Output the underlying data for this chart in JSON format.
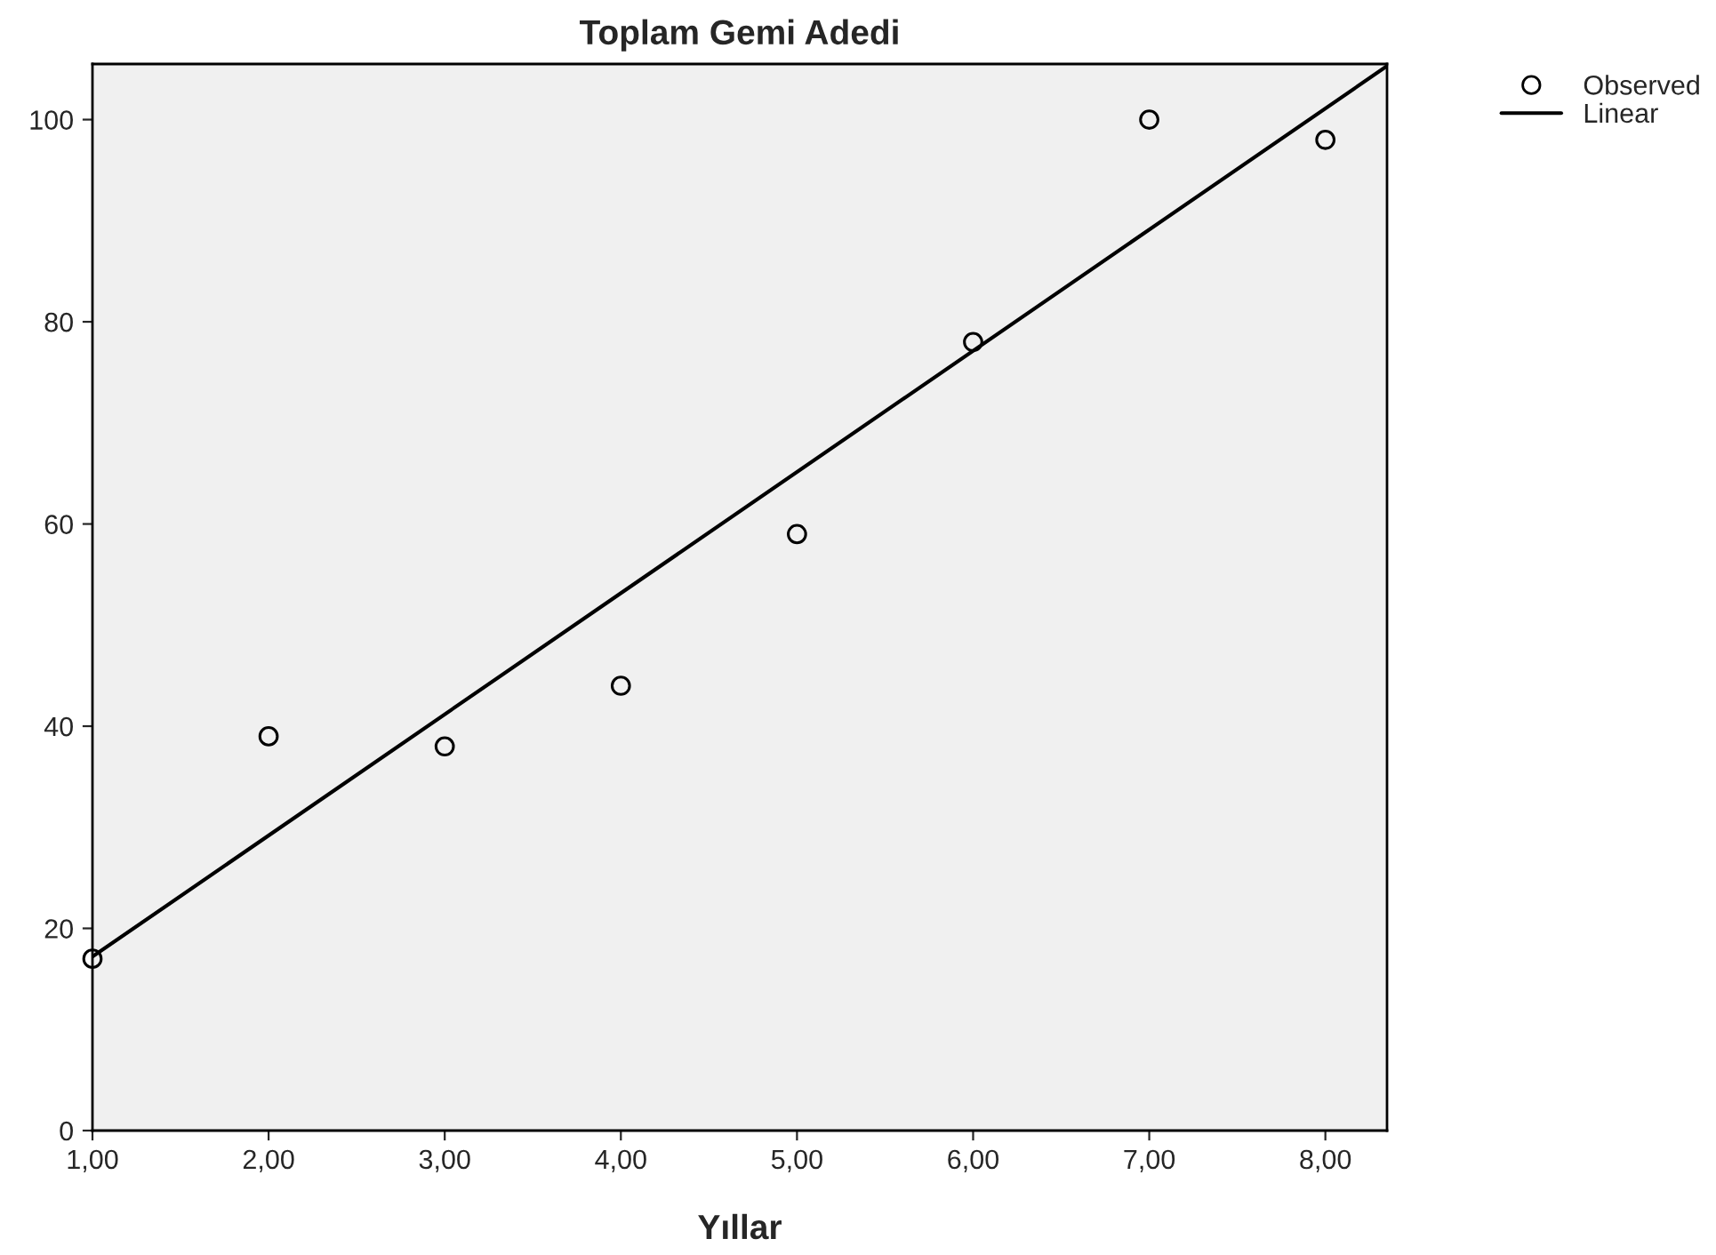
{
  "chart_data": {
    "type": "scatter",
    "title": "Toplam Gemi Adedi",
    "xlabel": "Yıllar",
    "xlim": [
      1,
      8.35
    ],
    "ylim": [
      0,
      105.5
    ],
    "xticks": [
      {
        "value": 1,
        "label": "1,00"
      },
      {
        "value": 2,
        "label": "2,00"
      },
      {
        "value": 3,
        "label": "3,00"
      },
      {
        "value": 4,
        "label": "4,00"
      },
      {
        "value": 5,
        "label": "5,00"
      },
      {
        "value": 6,
        "label": "6,00"
      },
      {
        "value": 7,
        "label": "7,00"
      },
      {
        "value": 8,
        "label": "8,00"
      }
    ],
    "yticks": [
      0,
      20,
      40,
      60,
      80,
      100
    ],
    "grid": false,
    "legend": "top right",
    "series": [
      {
        "name": "Observed",
        "marker": "circle",
        "color": "#000000",
        "x": [
          1,
          2,
          3,
          4,
          5,
          6,
          7,
          8
        ],
        "values": [
          17,
          39,
          38,
          44,
          59,
          78,
          100,
          98
        ]
      },
      {
        "name": "Linear",
        "type": "line",
        "marker": "none",
        "line_style": "solid",
        "color": "#000000",
        "x": [
          1,
          8.35
        ],
        "values": [
          17.2,
          105.3
        ]
      }
    ]
  }
}
